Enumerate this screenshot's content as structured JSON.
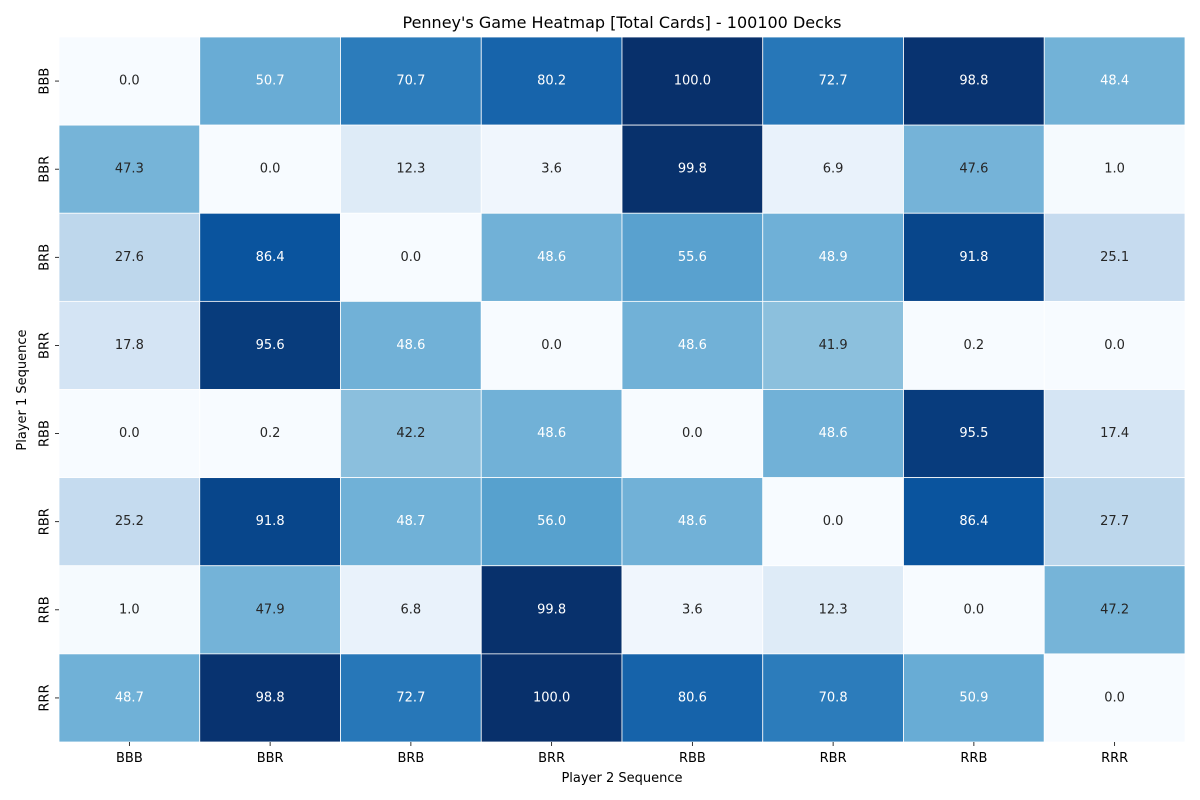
{
  "chart_data": {
    "type": "heatmap",
    "title": "Penney's Game Heatmap [Total Cards] - 100100 Decks",
    "xlabel": "Player 2 Sequence",
    "ylabel": "Player 1 Sequence",
    "x_categories": [
      "BBB",
      "BBR",
      "BRB",
      "BRR",
      "RBB",
      "RBR",
      "RRB",
      "RRR"
    ],
    "y_categories": [
      "BBB",
      "BBR",
      "BRB",
      "BRR",
      "RBB",
      "RBR",
      "RRB",
      "RRR"
    ],
    "values": [
      [
        0.0,
        50.7,
        70.7,
        80.2,
        100.0,
        72.7,
        98.8,
        48.4
      ],
      [
        47.3,
        0.0,
        12.3,
        3.6,
        99.8,
        6.9,
        47.6,
        1.0
      ],
      [
        27.6,
        86.4,
        0.0,
        48.6,
        55.6,
        48.9,
        91.8,
        25.1
      ],
      [
        17.8,
        95.6,
        48.6,
        0.0,
        48.6,
        41.9,
        0.2,
        0.0
      ],
      [
        0.0,
        0.2,
        42.2,
        48.6,
        0.0,
        48.6,
        95.5,
        17.4
      ],
      [
        25.2,
        91.8,
        48.7,
        56.0,
        48.6,
        0.0,
        86.4,
        27.7
      ],
      [
        1.0,
        47.9,
        6.8,
        99.8,
        3.6,
        12.3,
        0.0,
        47.2
      ],
      [
        48.7,
        98.8,
        72.7,
        100.0,
        80.6,
        70.8,
        50.9,
        0.0
      ]
    ],
    "value_format": "0.1f",
    "colormap": "Blues",
    "value_range": [
      0,
      100
    ],
    "colorbar": false,
    "grid": false
  }
}
